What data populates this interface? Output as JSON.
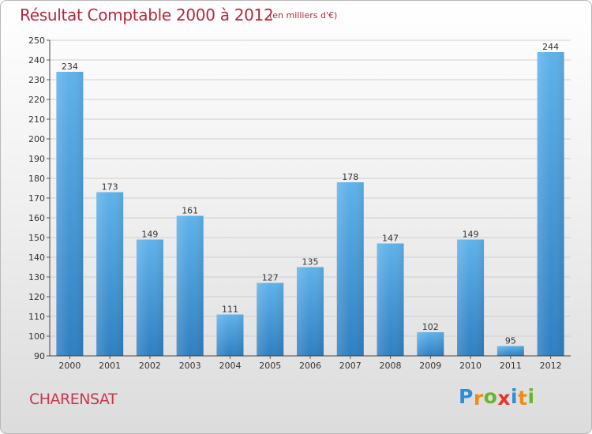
{
  "header": {
    "title": "Résultat Comptable 2000 à 2012",
    "subtitle": "(en milliers d'€)"
  },
  "footer": {
    "commune": "CHARENSAT",
    "logo_letters": [
      "P",
      "r",
      "o",
      "x",
      "i",
      "t",
      "i"
    ],
    "logo_colors": [
      "#2a8fd6",
      "#f08a1c",
      "#6ab42d",
      "#e8342b",
      "#2a8fd6",
      "#f08a1c",
      "#6ab42d"
    ]
  },
  "colors": {
    "bar_light": "#5fb2ea",
    "bar_dark": "#2f7fc1",
    "grid": "#cfcfcf",
    "title": "#b5283c"
  },
  "chart_data": {
    "type": "bar",
    "title": "Résultat Comptable 2000 à 2012",
    "subtitle": "(en milliers d'€)",
    "xlabel": "",
    "ylabel": "",
    "categories": [
      "2000",
      "2001",
      "2002",
      "2003",
      "2004",
      "2005",
      "2006",
      "2007",
      "2008",
      "2009",
      "2010",
      "2011",
      "2012"
    ],
    "values": [
      234,
      173,
      149,
      161,
      111,
      127,
      135,
      178,
      147,
      102,
      149,
      95,
      244
    ],
    "ylim": [
      90,
      250
    ],
    "yticks": [
      90,
      100,
      110,
      120,
      130,
      140,
      150,
      160,
      170,
      180,
      190,
      200,
      210,
      220,
      230,
      240,
      250
    ],
    "grid": true,
    "legend": "none"
  }
}
